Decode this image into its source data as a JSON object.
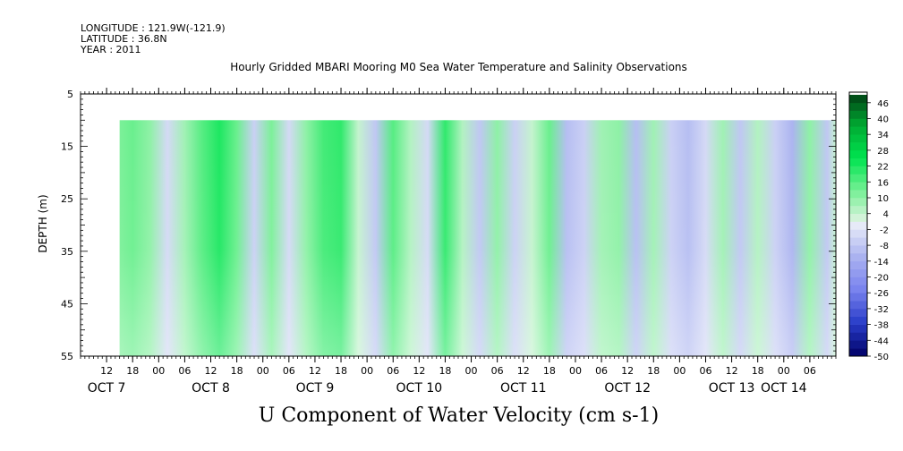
{
  "header": {
    "longitude": "LONGITUDE : 121.9W(-121.9)",
    "latitude": "LATITUDE : 36.8N",
    "year": "YEAR : 2011"
  },
  "chart_data": {
    "type": "heatmap",
    "title": "Hourly Gridded MBARI Mooring M0 Sea Water Temperature and Salinity Observations",
    "xlabel": "U Component of Water Velocity (cm s-1)",
    "ylabel": "DEPTH (m)",
    "ylim": [
      55,
      5
    ],
    "y_ticks": [
      5,
      15,
      25,
      35,
      45,
      55
    ],
    "y_tick_labels": [
      "5",
      "15",
      "25",
      "35",
      "45",
      "55"
    ],
    "x_range_hours": [
      "2011-10-07 06:00",
      "2011-10-14 12:00"
    ],
    "data_start": "2011-10-07 15:00",
    "data_end": "2011-10-14 12:00",
    "data_depth_range": [
      10,
      55
    ],
    "x_hour_ticks": [
      {
        "t": "2011-10-07 12:00",
        "label": "12"
      },
      {
        "t": "2011-10-07 18:00",
        "label": "18"
      },
      {
        "t": "2011-10-08 00:00",
        "label": "00"
      },
      {
        "t": "2011-10-08 06:00",
        "label": "06"
      },
      {
        "t": "2011-10-08 12:00",
        "label": "12"
      },
      {
        "t": "2011-10-08 18:00",
        "label": "18"
      },
      {
        "t": "2011-10-09 00:00",
        "label": "00"
      },
      {
        "t": "2011-10-09 06:00",
        "label": "06"
      },
      {
        "t": "2011-10-09 12:00",
        "label": "12"
      },
      {
        "t": "2011-10-09 18:00",
        "label": "18"
      },
      {
        "t": "2011-10-10 00:00",
        "label": "00"
      },
      {
        "t": "2011-10-10 06:00",
        "label": "06"
      },
      {
        "t": "2011-10-10 12:00",
        "label": "12"
      },
      {
        "t": "2011-10-10 18:00",
        "label": "18"
      },
      {
        "t": "2011-10-11 00:00",
        "label": "00"
      },
      {
        "t": "2011-10-11 06:00",
        "label": "06"
      },
      {
        "t": "2011-10-11 12:00",
        "label": "12"
      },
      {
        "t": "2011-10-11 18:00",
        "label": "18"
      },
      {
        "t": "2011-10-12 00:00",
        "label": "00"
      },
      {
        "t": "2011-10-12 06:00",
        "label": "06"
      },
      {
        "t": "2011-10-12 12:00",
        "label": "12"
      },
      {
        "t": "2011-10-12 18:00",
        "label": "18"
      },
      {
        "t": "2011-10-13 00:00",
        "label": "00"
      },
      {
        "t": "2011-10-13 06:00",
        "label": "06"
      },
      {
        "t": "2011-10-13 12:00",
        "label": "12"
      },
      {
        "t": "2011-10-13 18:00",
        "label": "18"
      },
      {
        "t": "2011-10-14 00:00",
        "label": "00"
      },
      {
        "t": "2011-10-14 06:00",
        "label": "06"
      }
    ],
    "x_day_labels": [
      {
        "t": "2011-10-07 12:00",
        "label": "OCT  7"
      },
      {
        "t": "2011-10-08 12:00",
        "label": "OCT  8"
      },
      {
        "t": "2011-10-09 12:00",
        "label": "OCT  9"
      },
      {
        "t": "2011-10-10 12:00",
        "label": "OCT 10"
      },
      {
        "t": "2011-10-11 12:00",
        "label": "OCT 11"
      },
      {
        "t": "2011-10-12 12:00",
        "label": "OCT 12"
      },
      {
        "t": "2011-10-13 12:00",
        "label": "OCT 13"
      },
      {
        "t": "2011-10-14 00:00",
        "label": "OCT 14"
      }
    ],
    "colorbar": {
      "range": [
        -50,
        50
      ],
      "step": 3,
      "labels": [
        "46",
        "40",
        "34",
        "28",
        "22",
        "16",
        "10",
        "4",
        "-2",
        "-8",
        "-14",
        "-20",
        "-26",
        "-32",
        "-38",
        "-44",
        "-50"
      ],
      "label_values": [
        46,
        40,
        34,
        28,
        22,
        16,
        10,
        4,
        -2,
        -8,
        -14,
        -20,
        -26,
        -32,
        -38,
        -44,
        -50
      ]
    },
    "bands": [
      {
        "t": "2011-10-07 15:00",
        "u": 12
      },
      {
        "t": "2011-10-07 18:00",
        "u": 14
      },
      {
        "t": "2011-10-07 22:00",
        "u": 10
      },
      {
        "t": "2011-10-08 02:00",
        "u": -4
      },
      {
        "t": "2011-10-08 06:00",
        "u": 8
      },
      {
        "t": "2011-10-08 10:00",
        "u": 16
      },
      {
        "t": "2011-10-08 14:00",
        "u": 22
      },
      {
        "t": "2011-10-08 18:00",
        "u": 14
      },
      {
        "t": "2011-10-08 22:00",
        "u": -6
      },
      {
        "t": "2011-10-09 02:00",
        "u": 12
      },
      {
        "t": "2011-10-09 06:00",
        "u": -4
      },
      {
        "t": "2011-10-09 10:00",
        "u": 10
      },
      {
        "t": "2011-10-09 14:00",
        "u": 18
      },
      {
        "t": "2011-10-09 18:00",
        "u": 20
      },
      {
        "t": "2011-10-09 22:00",
        "u": 4
      },
      {
        "t": "2011-10-10 02:00",
        "u": -8
      },
      {
        "t": "2011-10-10 06:00",
        "u": 16
      },
      {
        "t": "2011-10-10 10:00",
        "u": 6
      },
      {
        "t": "2011-10-10 14:00",
        "u": -4
      },
      {
        "t": "2011-10-10 18:00",
        "u": 20
      },
      {
        "t": "2011-10-10 22:00",
        "u": 6
      },
      {
        "t": "2011-10-11 02:00",
        "u": -8
      },
      {
        "t": "2011-10-11 06:00",
        "u": 10
      },
      {
        "t": "2011-10-11 10:00",
        "u": -6
      },
      {
        "t": "2011-10-11 14:00",
        "u": 4
      },
      {
        "t": "2011-10-11 18:00",
        "u": 14
      },
      {
        "t": "2011-10-11 22:00",
        "u": -10
      },
      {
        "t": "2011-10-12 02:00",
        "u": -6
      },
      {
        "t": "2011-10-12 06:00",
        "u": 8
      },
      {
        "t": "2011-10-12 10:00",
        "u": 10
      },
      {
        "t": "2011-10-12 14:00",
        "u": -10
      },
      {
        "t": "2011-10-12 18:00",
        "u": 8
      },
      {
        "t": "2011-10-12 22:00",
        "u": -6
      },
      {
        "t": "2011-10-13 02:00",
        "u": -10
      },
      {
        "t": "2011-10-13 06:00",
        "u": -4
      },
      {
        "t": "2011-10-13 10:00",
        "u": 8
      },
      {
        "t": "2011-10-13 14:00",
        "u": -8
      },
      {
        "t": "2011-10-13 18:00",
        "u": 6
      },
      {
        "t": "2011-10-13 22:00",
        "u": -6
      },
      {
        "t": "2011-10-14 02:00",
        "u": -12
      },
      {
        "t": "2011-10-14 06:00",
        "u": 10
      },
      {
        "t": "2011-10-14 10:00",
        "u": -8
      },
      {
        "t": "2011-10-14 12:00",
        "u": 4
      }
    ],
    "colors": {
      "zero_white": "#e8ecf8",
      "positive_max": "#003a12",
      "negative_max": "#000066"
    }
  }
}
